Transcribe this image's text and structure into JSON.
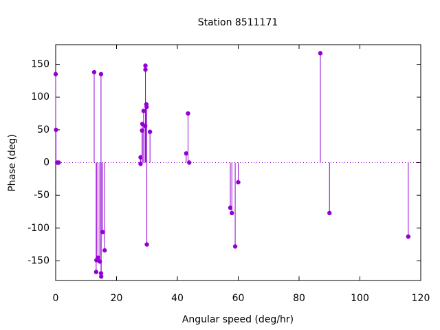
{
  "chart_data": {
    "type": "stem",
    "title": "Station 8511171",
    "x_label": "Angular speed (deg/hr)",
    "y_label": "Phase (deg)",
    "color": "#9400d3",
    "x": [
      0,
      0.1,
      0.5,
      1,
      12.65,
      13.3,
      13.4,
      13.9,
      14.5,
      14.9,
      14.9,
      14.96,
      15.4,
      16.1,
      27.9,
      27.9,
      28.4,
      28.5,
      28.9,
      29.5,
      29.5,
      29.4,
      29.8,
      29.9,
      29.96,
      31.0,
      42.9,
      43.5,
      43.9,
      57.4,
      57.9,
      59.0,
      60.0,
      87.0,
      90.0,
      115.9
    ],
    "values": [
      135,
      50,
      0,
      0,
      138,
      -167,
      -149,
      -145,
      -151,
      135,
      -169,
      -174,
      -106,
      -134,
      8,
      -2,
      49,
      59,
      79,
      142,
      148,
      56,
      89,
      85,
      -125,
      47,
      14,
      75,
      0,
      -69,
      -77,
      -128,
      -30,
      167,
      -77,
      -113
    ],
    "xlim": [
      0,
      120
    ],
    "ylim": [
      -180,
      180
    ],
    "xticks": [
      0,
      20,
      40,
      60,
      80,
      100,
      120
    ],
    "yticks": [
      -150,
      -100,
      -50,
      0,
      50,
      100,
      150
    ],
    "zero_line": true
  }
}
